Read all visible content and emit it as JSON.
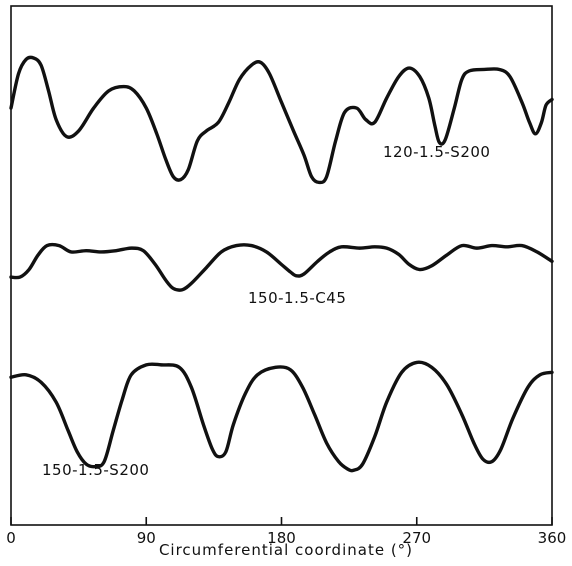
{
  "chart_data": {
    "type": "line",
    "xlabel": "Circumferential coordinate (°)",
    "ylabel": "",
    "xlim": [
      0,
      360
    ],
    "x_ticks": [
      0,
      90,
      180,
      270,
      360
    ],
    "tick_labels": [
      "0",
      "90",
      "180",
      "270",
      "360"
    ],
    "grid": false,
    "y_axis_values_shown": false,
    "colors": {
      "line": "#111111",
      "background": "#ffffff"
    },
    "series": [
      {
        "name": "120-1.5-S200",
        "points": [
          [
            0,
            0.58
          ],
          [
            5,
            0.82
          ],
          [
            10,
            0.92
          ],
          [
            15,
            0.93
          ],
          [
            20,
            0.88
          ],
          [
            25,
            0.7
          ],
          [
            30,
            0.5
          ],
          [
            37,
            0.38
          ],
          [
            45,
            0.42
          ],
          [
            55,
            0.58
          ],
          [
            65,
            0.7
          ],
          [
            75,
            0.73
          ],
          [
            82,
            0.7
          ],
          [
            90,
            0.58
          ],
          [
            97,
            0.4
          ],
          [
            103,
            0.22
          ],
          [
            108,
            0.1
          ],
          [
            113,
            0.08
          ],
          [
            118,
            0.15
          ],
          [
            124,
            0.35
          ],
          [
            130,
            0.42
          ],
          [
            138,
            0.48
          ],
          [
            145,
            0.62
          ],
          [
            152,
            0.78
          ],
          [
            160,
            0.88
          ],
          [
            166,
            0.9
          ],
          [
            172,
            0.82
          ],
          [
            180,
            0.62
          ],
          [
            188,
            0.42
          ],
          [
            195,
            0.25
          ],
          [
            200,
            0.1
          ],
          [
            205,
            0.06
          ],
          [
            210,
            0.1
          ],
          [
            216,
            0.35
          ],
          [
            222,
            0.55
          ],
          [
            230,
            0.58
          ],
          [
            236,
            0.5
          ],
          [
            242,
            0.48
          ],
          [
            250,
            0.65
          ],
          [
            258,
            0.8
          ],
          [
            265,
            0.86
          ],
          [
            272,
            0.8
          ],
          [
            278,
            0.65
          ],
          [
            282,
            0.46
          ],
          [
            285,
            0.34
          ],
          [
            289,
            0.36
          ],
          [
            295,
            0.58
          ],
          [
            300,
            0.78
          ],
          [
            305,
            0.84
          ],
          [
            315,
            0.85
          ],
          [
            325,
            0.85
          ],
          [
            332,
            0.8
          ],
          [
            340,
            0.62
          ],
          [
            345,
            0.48
          ],
          [
            349,
            0.4
          ],
          [
            353,
            0.48
          ],
          [
            356,
            0.6
          ],
          [
            360,
            0.64
          ]
        ],
        "label": "120-1.5-S200"
      },
      {
        "name": "150-1.5-C45",
        "points": [
          [
            0,
            0.3
          ],
          [
            6,
            0.3
          ],
          [
            12,
            0.42
          ],
          [
            18,
            0.65
          ],
          [
            24,
            0.8
          ],
          [
            32,
            0.8
          ],
          [
            40,
            0.7
          ],
          [
            50,
            0.72
          ],
          [
            60,
            0.7
          ],
          [
            70,
            0.72
          ],
          [
            80,
            0.76
          ],
          [
            88,
            0.72
          ],
          [
            96,
            0.5
          ],
          [
            103,
            0.25
          ],
          [
            108,
            0.12
          ],
          [
            114,
            0.1
          ],
          [
            120,
            0.2
          ],
          [
            130,
            0.45
          ],
          [
            140,
            0.7
          ],
          [
            150,
            0.8
          ],
          [
            160,
            0.8
          ],
          [
            170,
            0.7
          ],
          [
            180,
            0.5
          ],
          [
            186,
            0.38
          ],
          [
            190,
            0.32
          ],
          [
            195,
            0.35
          ],
          [
            204,
            0.55
          ],
          [
            212,
            0.7
          ],
          [
            220,
            0.78
          ],
          [
            232,
            0.76
          ],
          [
            242,
            0.78
          ],
          [
            250,
            0.76
          ],
          [
            258,
            0.66
          ],
          [
            265,
            0.5
          ],
          [
            272,
            0.42
          ],
          [
            280,
            0.48
          ],
          [
            290,
            0.65
          ],
          [
            300,
            0.8
          ],
          [
            310,
            0.76
          ],
          [
            320,
            0.8
          ],
          [
            330,
            0.78
          ],
          [
            340,
            0.8
          ],
          [
            350,
            0.7
          ],
          [
            360,
            0.55
          ]
        ],
        "label": "150-1.5-C45"
      },
      {
        "name": "150-1.5-S200",
        "points": [
          [
            0,
            0.78
          ],
          [
            10,
            0.8
          ],
          [
            20,
            0.74
          ],
          [
            30,
            0.58
          ],
          [
            38,
            0.35
          ],
          [
            44,
            0.18
          ],
          [
            50,
            0.08
          ],
          [
            56,
            0.06
          ],
          [
            62,
            0.1
          ],
          [
            68,
            0.35
          ],
          [
            74,
            0.6
          ],
          [
            80,
            0.8
          ],
          [
            90,
            0.88
          ],
          [
            100,
            0.88
          ],
          [
            112,
            0.86
          ],
          [
            120,
            0.7
          ],
          [
            128,
            0.4
          ],
          [
            134,
            0.2
          ],
          [
            138,
            0.14
          ],
          [
            143,
            0.18
          ],
          [
            148,
            0.4
          ],
          [
            156,
            0.65
          ],
          [
            164,
            0.8
          ],
          [
            176,
            0.86
          ],
          [
            186,
            0.84
          ],
          [
            194,
            0.7
          ],
          [
            202,
            0.48
          ],
          [
            210,
            0.25
          ],
          [
            218,
            0.1
          ],
          [
            224,
            0.04
          ],
          [
            228,
            0.03
          ],
          [
            234,
            0.08
          ],
          [
            242,
            0.3
          ],
          [
            250,
            0.58
          ],
          [
            260,
            0.82
          ],
          [
            270,
            0.9
          ],
          [
            280,
            0.86
          ],
          [
            290,
            0.72
          ],
          [
            300,
            0.48
          ],
          [
            308,
            0.25
          ],
          [
            314,
            0.12
          ],
          [
            320,
            0.1
          ],
          [
            326,
            0.2
          ],
          [
            334,
            0.45
          ],
          [
            344,
            0.7
          ],
          [
            352,
            0.8
          ],
          [
            360,
            0.82
          ]
        ],
        "label": "150-1.5-S200"
      }
    ]
  }
}
